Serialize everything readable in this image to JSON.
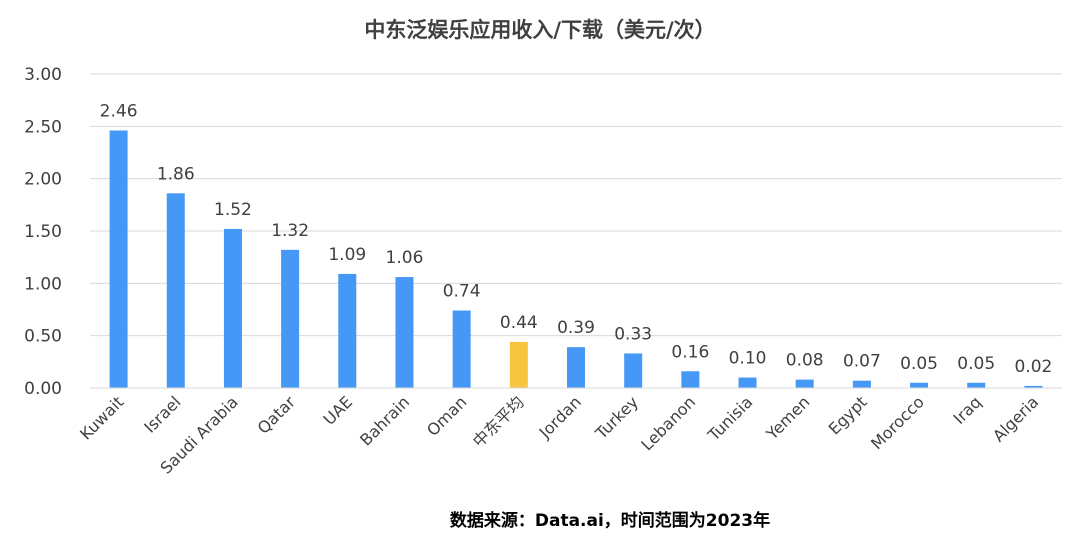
{
  "chart_data": {
    "type": "bar",
    "title": "中东泛娱乐应用收入/下载（美元/次）",
    "categories": [
      "Kuwait",
      "Israel",
      "Saudi Arabia",
      "Qatar",
      "UAE",
      "Bahrain",
      "Oman",
      "中东平均",
      "Jordan",
      "Turkey",
      "Lebanon",
      "Tunisia",
      "Yemen",
      "Egypt",
      "Morocco",
      "Iraq",
      "Algeria"
    ],
    "values": [
      2.46,
      1.86,
      1.52,
      1.32,
      1.09,
      1.06,
      0.74,
      0.44,
      0.39,
      0.33,
      0.16,
      0.1,
      0.08,
      0.07,
      0.05,
      0.05,
      0.02
    ],
    "value_labels": [
      "2.46",
      "1.86",
      "1.52",
      "1.32",
      "1.09",
      "1.06",
      "0.74",
      "0.44",
      "0.39",
      "0.33",
      "0.16",
      "0.10",
      "0.08",
      "0.07",
      "0.05",
      "0.05",
      "0.02"
    ],
    "yticks": [
      "0.00",
      "0.50",
      "1.00",
      "1.50",
      "2.00",
      "2.50",
      "3.00"
    ],
    "ylim": [
      0,
      3
    ],
    "grid": true,
    "colors": {
      "bar": "#4598F5",
      "highlight": "#F7C53F",
      "grid": "#D9D9D9"
    },
    "highlight_category": "中东平均",
    "xlabel": "",
    "ylabel": ""
  },
  "footer": {
    "source": "数据来源：Data.ai，时间范围为2023年"
  }
}
